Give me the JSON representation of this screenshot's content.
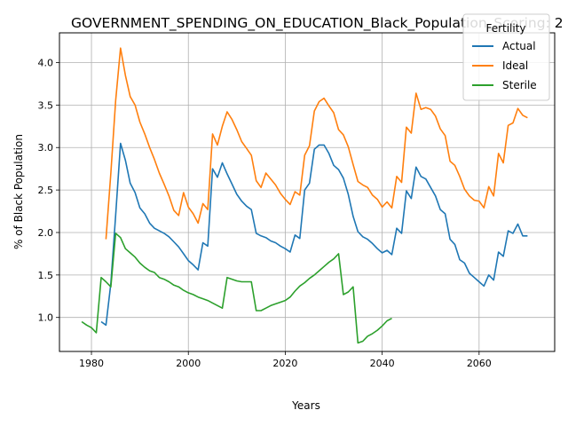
{
  "chart_data": {
    "type": "line",
    "title": "GOVERNMENT_SPENDING_ON_EDUCATION_Black_Population_Scoring: 2",
    "xlabel": "Years",
    "ylabel": "% of Black Population",
    "xlim": [
      1973.4,
      2075.6
    ],
    "ylim": [
      0.6,
      4.35
    ],
    "xticks": [
      1980,
      2000,
      2020,
      2040,
      2060
    ],
    "yticks": [
      1.0,
      1.5,
      2.0,
      2.5,
      3.0,
      3.5,
      4.0
    ],
    "grid": true,
    "legend": {
      "title": "Fertility",
      "placement": "top-right"
    },
    "series": [
      {
        "name": "Actual",
        "color": "#1f77b4",
        "points": [
          [
            1982,
            0.95
          ],
          [
            1983,
            0.91
          ],
          [
            1984,
            1.4
          ],
          [
            1985,
            2.2
          ],
          [
            1986,
            3.05
          ],
          [
            1987,
            2.85
          ],
          [
            1988,
            2.58
          ],
          [
            1989,
            2.47
          ],
          [
            1990,
            2.29
          ],
          [
            1991,
            2.22
          ],
          [
            1992,
            2.11
          ],
          [
            1993,
            2.05
          ],
          [
            1994,
            2.02
          ],
          [
            1995,
            1.99
          ],
          [
            1996,
            1.95
          ],
          [
            1997,
            1.89
          ],
          [
            1998,
            1.83
          ],
          [
            1999,
            1.75
          ],
          [
            2000,
            1.67
          ],
          [
            2001,
            1.62
          ],
          [
            2002,
            1.56
          ],
          [
            2003,
            1.88
          ],
          [
            2004,
            1.84
          ],
          [
            2005,
            2.75
          ],
          [
            2006,
            2.65
          ],
          [
            2007,
            2.82
          ],
          [
            2008,
            2.69
          ],
          [
            2009,
            2.57
          ],
          [
            2010,
            2.45
          ],
          [
            2011,
            2.37
          ],
          [
            2012,
            2.31
          ],
          [
            2013,
            2.27
          ],
          [
            2014,
            1.99
          ],
          [
            2015,
            1.96
          ],
          [
            2016,
            1.94
          ],
          [
            2017,
            1.9
          ],
          [
            2018,
            1.88
          ],
          [
            2019,
            1.84
          ],
          [
            2020,
            1.81
          ],
          [
            2021,
            1.77
          ],
          [
            2022,
            1.97
          ],
          [
            2023,
            1.93
          ],
          [
            2024,
            2.5
          ],
          [
            2025,
            2.58
          ],
          [
            2026,
            2.98
          ],
          [
            2027,
            3.03
          ],
          [
            2028,
            3.03
          ],
          [
            2029,
            2.93
          ],
          [
            2030,
            2.79
          ],
          [
            2031,
            2.74
          ],
          [
            2032,
            2.64
          ],
          [
            2033,
            2.45
          ],
          [
            2034,
            2.19
          ],
          [
            2035,
            2.01
          ],
          [
            2036,
            1.95
          ],
          [
            2037,
            1.92
          ],
          [
            2038,
            1.87
          ],
          [
            2039,
            1.81
          ],
          [
            2040,
            1.76
          ],
          [
            2041,
            1.79
          ],
          [
            2042,
            1.74
          ],
          [
            2043,
            2.05
          ],
          [
            2044,
            1.99
          ],
          [
            2045,
            2.49
          ],
          [
            2046,
            2.4
          ],
          [
            2047,
            2.77
          ],
          [
            2048,
            2.66
          ],
          [
            2049,
            2.63
          ],
          [
            2050,
            2.53
          ],
          [
            2051,
            2.43
          ],
          [
            2052,
            2.27
          ],
          [
            2053,
            2.22
          ],
          [
            2054,
            1.92
          ],
          [
            2055,
            1.86
          ],
          [
            2056,
            1.68
          ],
          [
            2057,
            1.64
          ],
          [
            2058,
            1.52
          ],
          [
            2059,
            1.47
          ],
          [
            2060,
            1.42
          ],
          [
            2061,
            1.37
          ],
          [
            2062,
            1.5
          ],
          [
            2063,
            1.44
          ],
          [
            2064,
            1.77
          ],
          [
            2065,
            1.72
          ],
          [
            2066,
            2.02
          ],
          [
            2067,
            1.99
          ],
          [
            2068,
            2.1
          ],
          [
            2069,
            1.96
          ],
          [
            2070,
            1.96
          ]
        ]
      },
      {
        "name": "Ideal",
        "color": "#ff7f0e",
        "points": [
          [
            1983,
            1.92
          ],
          [
            1984,
            2.7
          ],
          [
            1985,
            3.55
          ],
          [
            1986,
            4.17
          ],
          [
            1987,
            3.85
          ],
          [
            1988,
            3.6
          ],
          [
            1989,
            3.5
          ],
          [
            1990,
            3.3
          ],
          [
            1991,
            3.16
          ],
          [
            1992,
            3.0
          ],
          [
            1993,
            2.86
          ],
          [
            1994,
            2.7
          ],
          [
            1995,
            2.57
          ],
          [
            1996,
            2.43
          ],
          [
            1997,
            2.26
          ],
          [
            1998,
            2.2
          ],
          [
            1999,
            2.47
          ],
          [
            2000,
            2.3
          ],
          [
            2001,
            2.22
          ],
          [
            2002,
            2.11
          ],
          [
            2003,
            2.34
          ],
          [
            2004,
            2.27
          ],
          [
            2005,
            3.16
          ],
          [
            2006,
            3.03
          ],
          [
            2007,
            3.25
          ],
          [
            2008,
            3.42
          ],
          [
            2009,
            3.33
          ],
          [
            2010,
            3.21
          ],
          [
            2011,
            3.07
          ],
          [
            2012,
            2.99
          ],
          [
            2013,
            2.91
          ],
          [
            2014,
            2.61
          ],
          [
            2015,
            2.53
          ],
          [
            2016,
            2.7
          ],
          [
            2017,
            2.63
          ],
          [
            2018,
            2.56
          ],
          [
            2019,
            2.46
          ],
          [
            2020,
            2.39
          ],
          [
            2021,
            2.33
          ],
          [
            2022,
            2.48
          ],
          [
            2023,
            2.44
          ],
          [
            2024,
            2.91
          ],
          [
            2025,
            3.02
          ],
          [
            2026,
            3.43
          ],
          [
            2027,
            3.54
          ],
          [
            2028,
            3.58
          ],
          [
            2029,
            3.49
          ],
          [
            2030,
            3.41
          ],
          [
            2031,
            3.21
          ],
          [
            2032,
            3.15
          ],
          [
            2033,
            3.01
          ],
          [
            2034,
            2.8
          ],
          [
            2035,
            2.6
          ],
          [
            2036,
            2.56
          ],
          [
            2037,
            2.53
          ],
          [
            2038,
            2.44
          ],
          [
            2039,
            2.39
          ],
          [
            2040,
            2.3
          ],
          [
            2041,
            2.36
          ],
          [
            2042,
            2.29
          ],
          [
            2043,
            2.66
          ],
          [
            2044,
            2.59
          ],
          [
            2045,
            3.24
          ],
          [
            2046,
            3.17
          ],
          [
            2047,
            3.64
          ],
          [
            2048,
            3.45
          ],
          [
            2049,
            3.47
          ],
          [
            2050,
            3.45
          ],
          [
            2051,
            3.37
          ],
          [
            2052,
            3.22
          ],
          [
            2053,
            3.14
          ],
          [
            2054,
            2.84
          ],
          [
            2055,
            2.79
          ],
          [
            2056,
            2.66
          ],
          [
            2057,
            2.51
          ],
          [
            2058,
            2.43
          ],
          [
            2059,
            2.38
          ],
          [
            2060,
            2.37
          ],
          [
            2061,
            2.29
          ],
          [
            2062,
            2.54
          ],
          [
            2063,
            2.43
          ],
          [
            2064,
            2.93
          ],
          [
            2065,
            2.82
          ],
          [
            2066,
            3.26
          ],
          [
            2067,
            3.29
          ],
          [
            2068,
            3.46
          ],
          [
            2069,
            3.38
          ],
          [
            2070,
            3.35
          ]
        ]
      },
      {
        "name": "Sterile",
        "color": "#2ca02c",
        "points": [
          [
            1978,
            0.95
          ],
          [
            1979,
            0.91
          ],
          [
            1980,
            0.88
          ],
          [
            1981,
            0.82
          ],
          [
            1982,
            1.47
          ],
          [
            1983,
            1.42
          ],
          [
            1984,
            1.36
          ],
          [
            1985,
            1.99
          ],
          [
            1986,
            1.94
          ],
          [
            1987,
            1.81
          ],
          [
            1988,
            1.76
          ],
          [
            1989,
            1.71
          ],
          [
            1990,
            1.64
          ],
          [
            1991,
            1.59
          ],
          [
            1992,
            1.55
          ],
          [
            1993,
            1.53
          ],
          [
            1994,
            1.47
          ],
          [
            1995,
            1.45
          ],
          [
            1996,
            1.42
          ],
          [
            1997,
            1.38
          ],
          [
            1998,
            1.36
          ],
          [
            1999,
            1.32
          ],
          [
            2000,
            1.29
          ],
          [
            2001,
            1.27
          ],
          [
            2002,
            1.24
          ],
          [
            2003,
            1.22
          ],
          [
            2004,
            1.2
          ],
          [
            2005,
            1.17
          ],
          [
            2006,
            1.14
          ],
          [
            2007,
            1.11
          ],
          [
            2008,
            1.47
          ],
          [
            2009,
            1.45
          ],
          [
            2010,
            1.43
          ],
          [
            2011,
            1.42
          ],
          [
            2012,
            1.42
          ],
          [
            2013,
            1.42
          ],
          [
            2014,
            1.08
          ],
          [
            2015,
            1.08
          ],
          [
            2016,
            1.11
          ],
          [
            2017,
            1.14
          ],
          [
            2018,
            1.16
          ],
          [
            2019,
            1.18
          ],
          [
            2020,
            1.2
          ],
          [
            2021,
            1.24
          ],
          [
            2022,
            1.31
          ],
          [
            2023,
            1.37
          ],
          [
            2024,
            1.41
          ],
          [
            2025,
            1.46
          ],
          [
            2026,
            1.5
          ],
          [
            2027,
            1.55
          ],
          [
            2028,
            1.6
          ],
          [
            2029,
            1.65
          ],
          [
            2030,
            1.69
          ],
          [
            2031,
            1.75
          ],
          [
            2032,
            1.27
          ],
          [
            2033,
            1.3
          ],
          [
            2034,
            1.36
          ],
          [
            2035,
            0.7
          ],
          [
            2036,
            0.72
          ],
          [
            2037,
            0.78
          ],
          [
            2038,
            0.81
          ],
          [
            2039,
            0.85
          ],
          [
            2040,
            0.9
          ],
          [
            2041,
            0.96
          ],
          [
            2042,
            0.99
          ]
        ]
      }
    ]
  }
}
